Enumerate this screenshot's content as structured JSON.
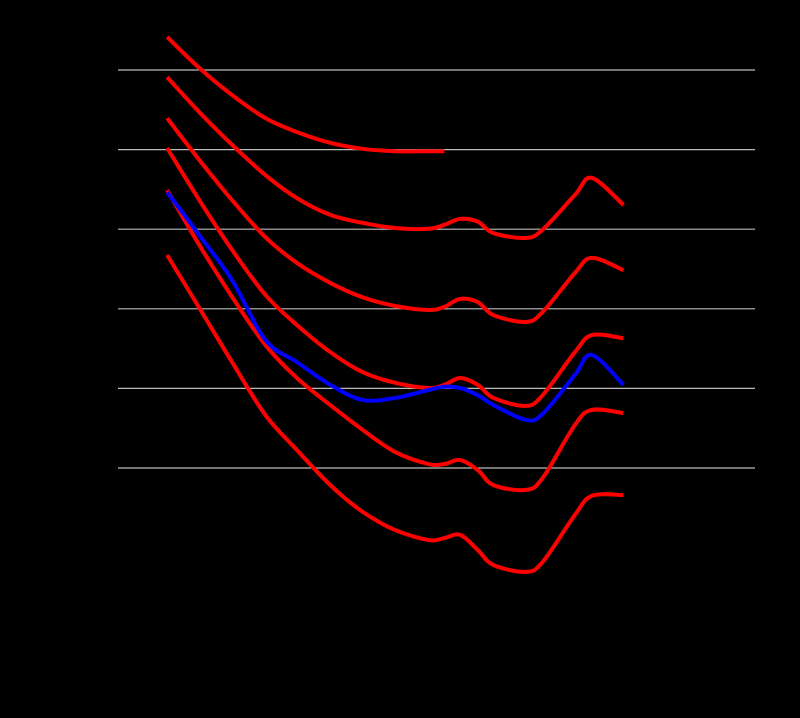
{
  "chart_data": {
    "type": "line",
    "log_x": true,
    "grid": true,
    "xlim": [
      10,
      80000
    ],
    "ylim": [
      -10,
      130
    ],
    "yticks": [
      20,
      40,
      60,
      80,
      100,
      120
    ],
    "x": [
      20,
      31.5,
      50,
      80,
      125,
      200,
      315,
      500,
      800,
      1000,
      1250,
      1600,
      2000,
      3150,
      4000,
      6300,
      8000,
      12500
    ],
    "series": [
      {
        "color": "#ff0000",
        "values": [
          128.3,
          120.5,
          113.7,
          107.9,
          104.4,
          101.7,
          100.2,
          99.6,
          99.6,
          99.6,
          null,
          null,
          null,
          null,
          null,
          null,
          null,
          null
        ]
      },
      {
        "color": "#ff0000",
        "values": [
          118.2,
          109.4,
          101.2,
          93.6,
          87.8,
          83.6,
          81.6,
          80.3,
          80.1,
          81.1,
          82.6,
          81.9,
          79.0,
          77.8,
          79.9,
          88.6,
          92.9,
          86.1
        ]
      },
      {
        "color": "#ff0000",
        "values": [
          107.9,
          97.4,
          87.3,
          78.0,
          71.5,
          66.5,
          62.9,
          60.7,
          59.7,
          60.5,
          62.5,
          61.7,
          58.4,
          56.7,
          59.2,
          69.0,
          72.8,
          69.7
        ]
      },
      {
        "color": "#ff0000",
        "values": [
          100.4,
          87.3,
          74.8,
          63.5,
          55.9,
          49.1,
          44.1,
          41.4,
          40.1,
          40.9,
          42.6,
          40.9,
          37.6,
          35.6,
          38.3,
          49.1,
          53.4,
          52.6
        ]
      },
      {
        "color": "#ff0000",
        "values": [
          89.8,
          76.0,
          63.0,
          50.9,
          42.6,
          35.8,
          29.6,
          24.0,
          21.0,
          21.0,
          22.0,
          19.5,
          15.7,
          14.5,
          17.5,
          30.8,
          34.6,
          33.8
        ]
      },
      {
        "color": "#ff0000",
        "values": [
          73.5,
          60.2,
          46.6,
          33.3,
          24.5,
          15.7,
          9.0,
          4.4,
          1.9,
          2.4,
          3.2,
          -0.6,
          -4.4,
          -6.1,
          -3.6,
          8.2,
          13.0,
          13.2
        ]
      },
      {
        "color": "#0000ff",
        "values": [
          89.3,
          78.5,
          67.2,
          52.2,
          46.6,
          40.9,
          37.1,
          37.6,
          39.6,
          40.4,
          40.1,
          38.3,
          35.8,
          32.1,
          33.6,
          43.4,
          48.4,
          40.9
        ]
      }
    ]
  }
}
